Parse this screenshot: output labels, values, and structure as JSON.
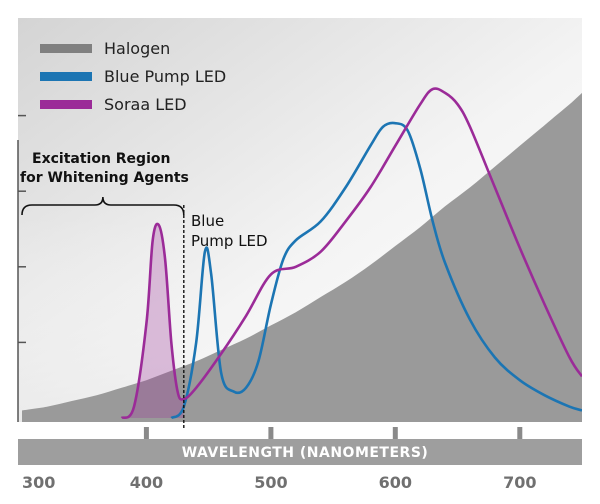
{
  "chart_data": {
    "type": "line",
    "title": "",
    "xlabel": "WAVELENGTH (NANOMETERS)",
    "ylabel": "",
    "xlim": [
      300,
      750
    ],
    "ylim": [
      0,
      1
    ],
    "xticks": [
      300,
      400,
      500,
      600,
      700
    ],
    "y_minor_ticks": [
      0.2,
      0.4,
      0.6,
      0.8
    ],
    "legend": {
      "placement": "top-left",
      "entries": [
        {
          "label": "Halogen",
          "color": "#808080"
        },
        {
          "label": "Blue Pump LED",
          "color": "#1c75b3"
        },
        {
          "label": "Soraa LED",
          "color": "#9b2b98"
        }
      ]
    },
    "series": [
      {
        "name": "Halogen",
        "color": "#9a9a9a",
        "style": "filled-area",
        "x": [
          300,
          320,
          340,
          360,
          380,
          400,
          420,
          440,
          460,
          480,
          500,
          520,
          540,
          560,
          580,
          600,
          620,
          640,
          660,
          680,
          700,
          720,
          740,
          750
        ],
        "y": [
          0.02,
          0.03,
          0.045,
          0.06,
          0.08,
          0.1,
          0.125,
          0.15,
          0.18,
          0.21,
          0.245,
          0.28,
          0.32,
          0.36,
          0.405,
          0.455,
          0.505,
          0.56,
          0.61,
          0.665,
          0.72,
          0.775,
          0.83,
          0.86
        ]
      },
      {
        "name": "Blue Pump LED",
        "color": "#1c75b3",
        "x": [
          420,
          430,
          440,
          447,
          452,
          460,
          470,
          480,
          490,
          500,
          510,
          520,
          540,
          560,
          580,
          590,
          600,
          610,
          620,
          630,
          640,
          660,
          680,
          700,
          720,
          740,
          750
        ],
        "y": [
          0.0,
          0.03,
          0.2,
          0.44,
          0.38,
          0.12,
          0.07,
          0.08,
          0.15,
          0.3,
          0.42,
          0.47,
          0.52,
          0.61,
          0.72,
          0.77,
          0.78,
          0.76,
          0.66,
          0.52,
          0.41,
          0.26,
          0.16,
          0.1,
          0.06,
          0.03,
          0.02
        ]
      },
      {
        "name": "Soraa LED",
        "color": "#9b2b98",
        "x": [
          380,
          390,
          400,
          405,
          410,
          415,
          420,
          425,
          430,
          440,
          460,
          480,
          500,
          520,
          540,
          560,
          580,
          600,
          620,
          630,
          640,
          650,
          660,
          680,
          700,
          720,
          740,
          750
        ],
        "y": [
          0.0,
          0.03,
          0.25,
          0.47,
          0.51,
          0.42,
          0.2,
          0.07,
          0.05,
          0.08,
          0.17,
          0.27,
          0.38,
          0.4,
          0.44,
          0.52,
          0.61,
          0.72,
          0.83,
          0.87,
          0.86,
          0.83,
          0.77,
          0.61,
          0.45,
          0.3,
          0.16,
          0.11
        ]
      }
    ],
    "shaded_region": {
      "from": 380,
      "to": 430,
      "series": "Soraa LED",
      "color": "#9b2b98"
    },
    "annotations": [
      {
        "label_lines": [
          "Excitation Region",
          "for Whitening Agents"
        ],
        "x_range": [
          300,
          430
        ],
        "type": "bracket"
      },
      {
        "label_lines": [
          "Blue",
          "Pump LED"
        ],
        "x": 430,
        "type": "dashed-vline"
      }
    ]
  }
}
